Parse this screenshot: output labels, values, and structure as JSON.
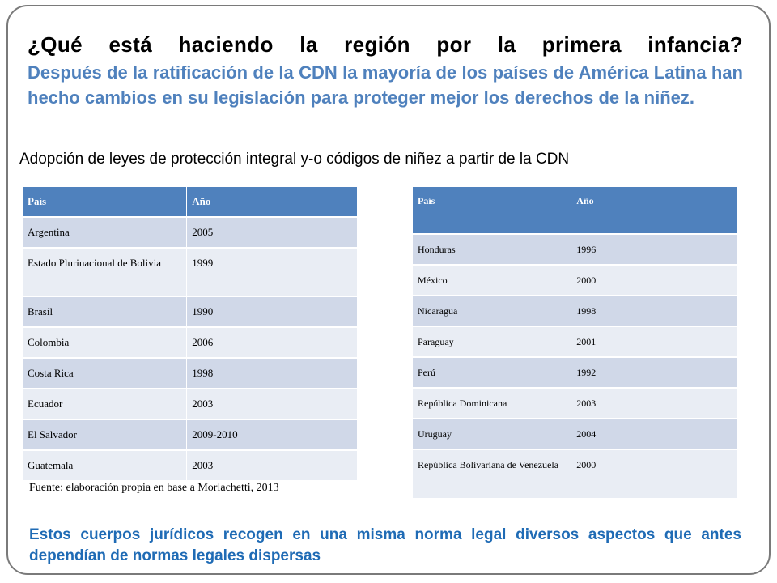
{
  "slide": {
    "title": "¿Qué está haciendo la región por la primera infancia?",
    "intro": "Después de la ratificación de la CDN la mayoría de los países de América Latina han hecho cambios en su legislación para proteger mejor los derechos de la niñez.",
    "subtitle": "Adopción de leyes de protección integral y-o códigos de niñez a partir de la CDN",
    "source": "Fuente: elaboración propia en base a Morlachetti, 2013",
    "footer": "Estos cuerpos jurídicos recogen en una misma norma legal diversos aspectos que antes dependían de normas legales dispersas"
  },
  "table_left": {
    "headers": [
      "País",
      "Año"
    ],
    "rows": [
      [
        "Argentina",
        "2005"
      ],
      [
        "Estado Plurinacional de Bolivia",
        "1999"
      ],
      [
        "Brasil",
        "1990"
      ],
      [
        "Colombia",
        "2006"
      ],
      [
        "Costa Rica",
        "1998"
      ],
      [
        "Ecuador",
        "2003"
      ],
      [
        "El Salvador",
        "2009-2010"
      ],
      [
        "Guatemala",
        "2003"
      ]
    ]
  },
  "table_right": {
    "headers": [
      "País",
      "Año"
    ],
    "rows": [
      [
        "Honduras",
        "1996"
      ],
      [
        "México",
        "2000"
      ],
      [
        "Nicaragua",
        "1998"
      ],
      [
        "Paraguay",
        "2001"
      ],
      [
        "Perú",
        "1992"
      ],
      [
        "República Dominicana",
        "2003"
      ],
      [
        "Uruguay",
        "2004"
      ],
      [
        "República Bolivariana de Venezuela",
        "2000"
      ]
    ]
  },
  "colors": {
    "header_fill": "#4f81bd",
    "row_band_dark": "#d0d8e8",
    "row_band_light": "#e9edf4",
    "intro_text": "#4f81bd",
    "footer_text": "#1f6bb5"
  }
}
